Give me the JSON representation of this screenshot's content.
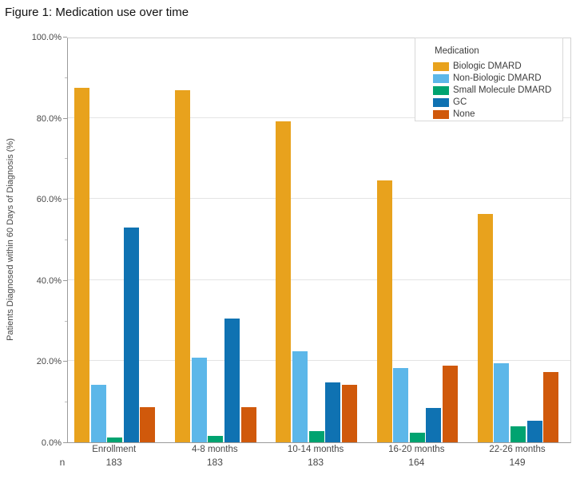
{
  "page": {
    "title": "Figure 1: Medication use over time"
  },
  "chart_data": {
    "type": "bar",
    "title": "Figure 1: Medication use over time",
    "xlabel": "",
    "ylabel": "Patients Diagnosed within 60 Days of Diagnosis (%)",
    "ylim": [
      0,
      100
    ],
    "y_tick_labels": [
      "0.0%",
      "20.0%",
      "40.0%",
      "60.0%",
      "80.0%",
      "100.0%"
    ],
    "grid": true,
    "legend_title": "Medication",
    "legend_position": "inside-top-right",
    "categories": [
      "Enrollment",
      "4-8 months",
      "10-14 months",
      "16-20 months",
      "22-26 months"
    ],
    "n_label": "n",
    "n_values": [
      183,
      183,
      183,
      164,
      149
    ],
    "series": [
      {
        "name": "Biologic DMARD",
        "color": "#E8A21D",
        "values": [
          87.4,
          86.9,
          79.2,
          64.6,
          56.4
        ]
      },
      {
        "name": "Non-Biologic DMARD",
        "color": "#5CB7E9",
        "values": [
          14.2,
          20.8,
          22.4,
          18.3,
          19.5
        ]
      },
      {
        "name": "Small Molecule DMARD",
        "color": "#00A370",
        "values": [
          1.1,
          1.6,
          2.7,
          2.4,
          4.0
        ]
      },
      {
        "name": "GC",
        "color": "#0F72B2",
        "values": [
          53.0,
          30.6,
          14.8,
          8.5,
          5.4
        ]
      },
      {
        "name": "None",
        "color": "#D0590B",
        "values": [
          8.7,
          8.7,
          14.2,
          19.0,
          17.4
        ]
      }
    ]
  }
}
